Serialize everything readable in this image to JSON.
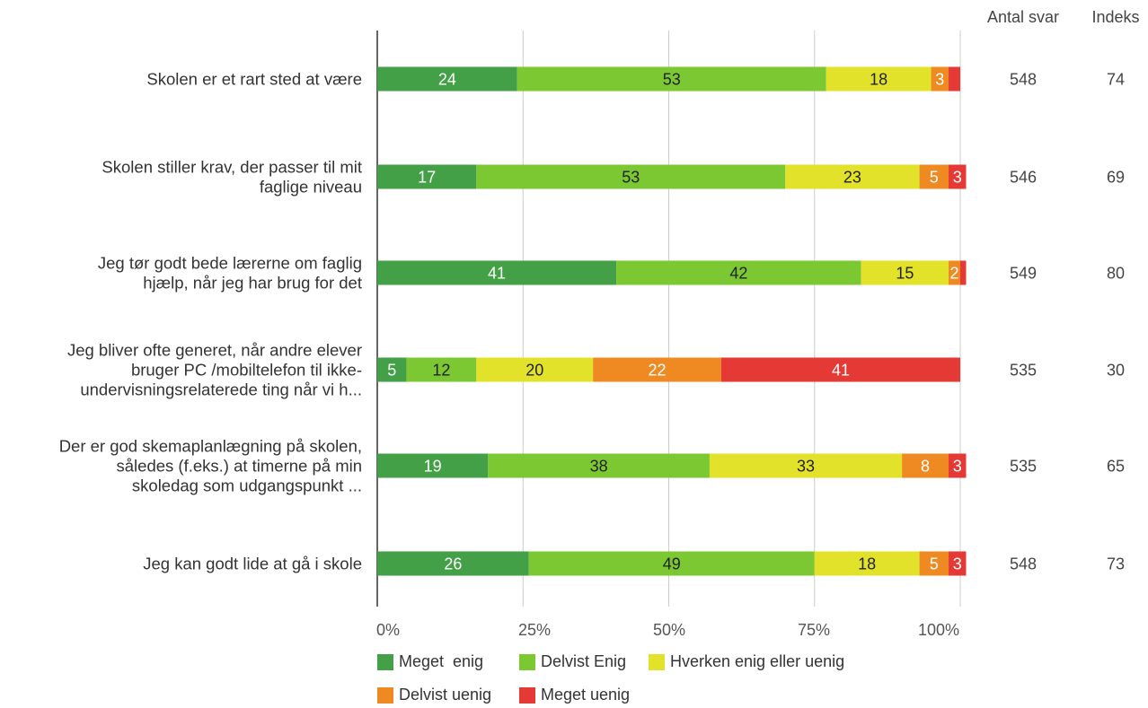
{
  "chart_data": {
    "type": "bar",
    "orientation": "horizontal",
    "stacked": true,
    "percent": true,
    "categories": [
      [
        "Skolen er et rart sted at være"
      ],
      [
        "Skolen stiller krav, der passer til mit",
        "faglige niveau"
      ],
      [
        "Jeg tør godt bede lærerne om faglig",
        "hjælp, når jeg har brug for det"
      ],
      [
        "Jeg bliver ofte generet, når andre elever",
        "bruger PC /mobiltelefon til ikke-",
        "undervisningsrelaterede ting når vi h..."
      ],
      [
        "Der er god skemaplanlægning på skolen,",
        "således (f.eks.) at timerne på min",
        "skoledag som udgangspunkt ..."
      ],
      [
        "Jeg kan godt lide at gå i skole"
      ]
    ],
    "series": [
      {
        "name": "Meget  enig",
        "color": "#43a047",
        "label_color": "#ffffff",
        "values": [
          24,
          17,
          41,
          5,
          19,
          26
        ]
      },
      {
        "name": "Delvist Enig",
        "color": "#7cc832",
        "label_color": "#222222",
        "values": [
          53,
          53,
          42,
          12,
          38,
          49
        ]
      },
      {
        "name": "Hverken enig eller uenig",
        "color": "#e2e22a",
        "label_color": "#222222",
        "values": [
          18,
          23,
          15,
          20,
          33,
          18
        ]
      },
      {
        "name": "Delvist uenig",
        "color": "#ef8a22",
        "label_color": "#ffffff",
        "values": [
          3,
          5,
          2,
          22,
          8,
          5
        ]
      },
      {
        "name": "Meget uenig",
        "color": "#e53935",
        "label_color": "#ffffff",
        "values": [
          2,
          3,
          1,
          41,
          3,
          3
        ]
      }
    ],
    "value_labels": [
      [
        "24",
        "53",
        "18",
        "3",
        ""
      ],
      [
        "17",
        "53",
        "23",
        "5",
        "3"
      ],
      [
        "41",
        "42",
        "15",
        "2",
        ""
      ],
      [
        "5",
        "12",
        "20",
        "22",
        "41"
      ],
      [
        "19",
        "38",
        "33",
        "8",
        "3"
      ],
      [
        "26",
        "49",
        "18",
        "5",
        "3"
      ]
    ],
    "xlim": [
      0,
      100
    ],
    "xticks": [
      "0%",
      "25%",
      "50%",
      "75%",
      "100%"
    ],
    "grid": true,
    "legend_position": "bottom",
    "side_columns": {
      "headers": [
        "Antal svar",
        "Indeks"
      ],
      "antal_svar": [
        "548",
        "546",
        "549",
        "535",
        "535",
        "548"
      ],
      "indeks": [
        "74",
        "69",
        "80",
        "30",
        "65",
        "73"
      ]
    }
  }
}
